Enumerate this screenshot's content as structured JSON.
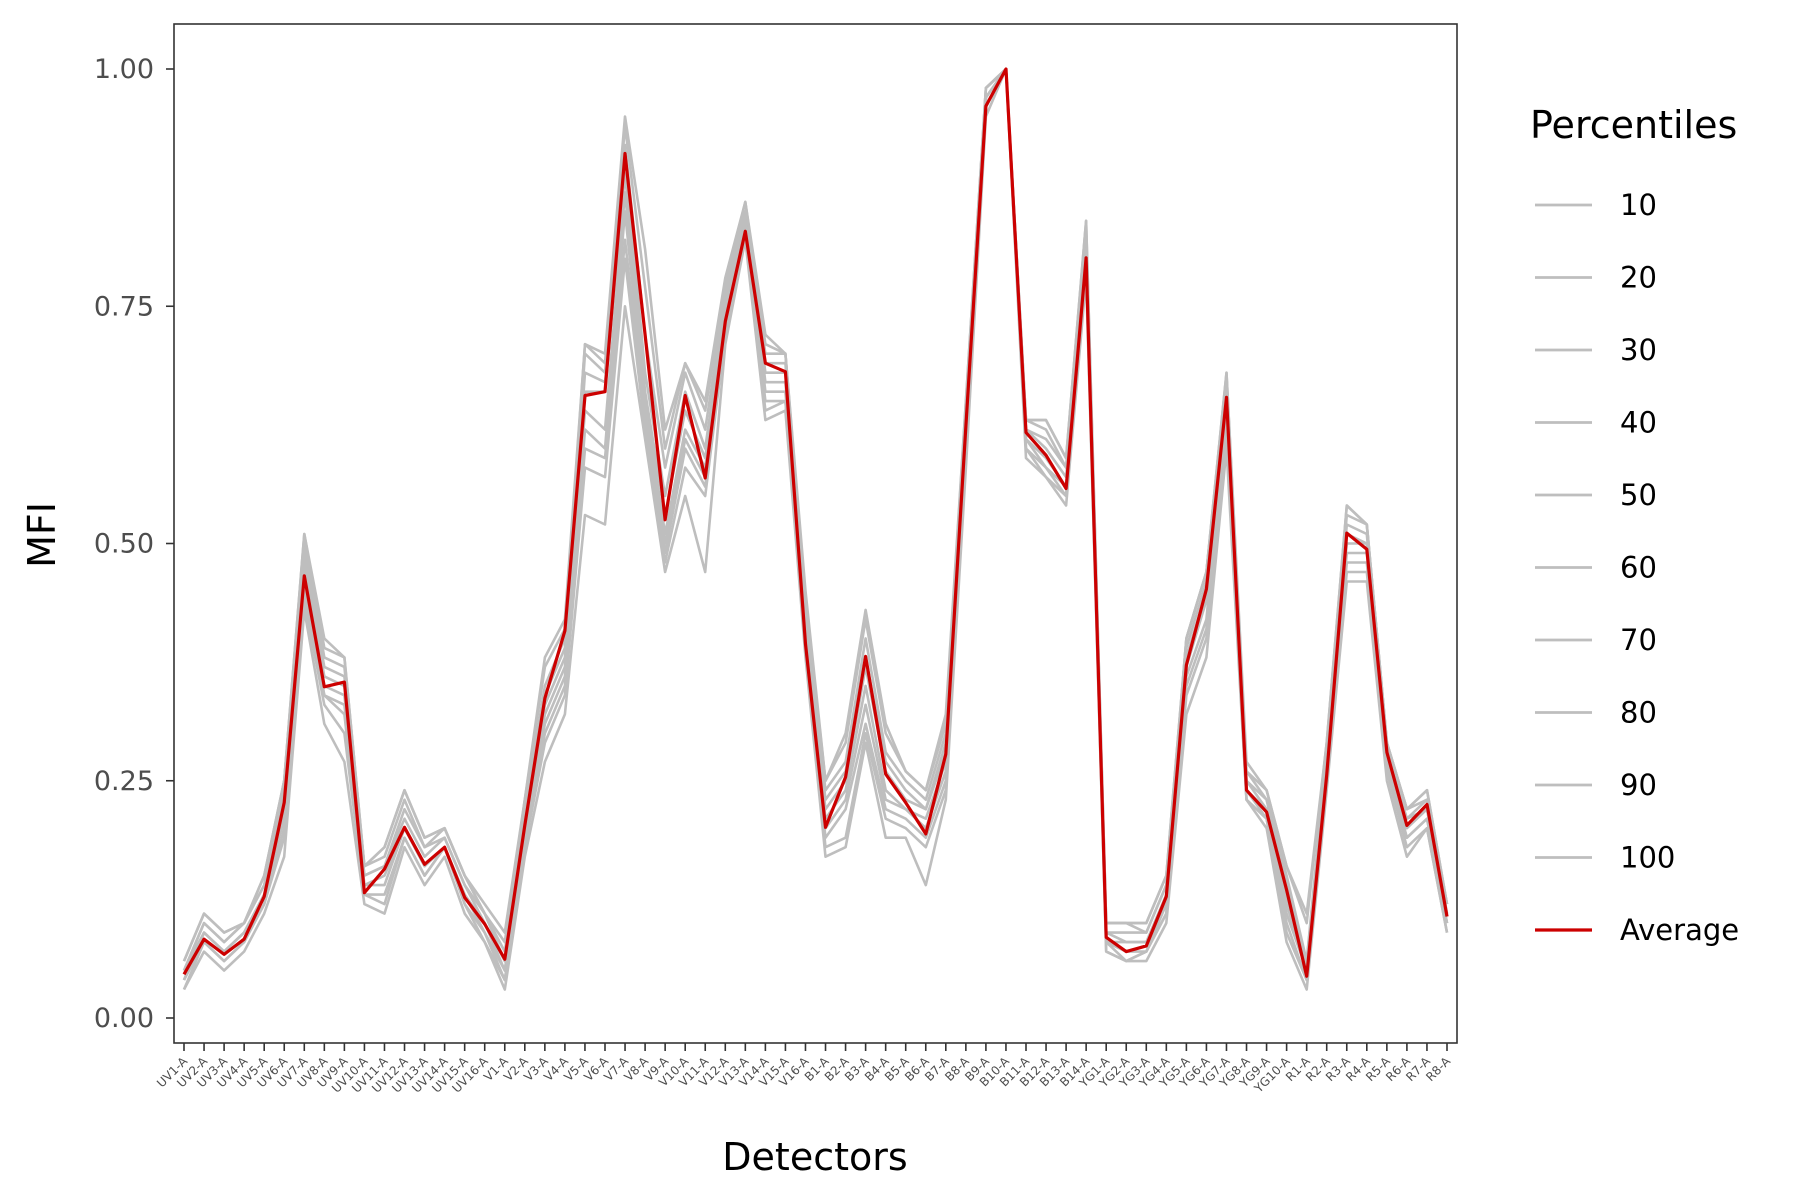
{
  "chart_data": {
    "type": "line",
    "xlabel": "Detectors",
    "ylabel": "MFI",
    "ylim": [
      0,
      1
    ],
    "yticks": [
      0.0,
      0.25,
      0.5,
      0.75,
      1.0
    ],
    "ytick_labels": [
      "0.00",
      "0.25",
      "0.50",
      "0.75",
      "1.00"
    ],
    "grid": false,
    "legend": {
      "title": "Percentiles",
      "position": "right"
    },
    "categories": [
      "UV1-A",
      "UV2-A",
      "UV3-A",
      "UV4-A",
      "UV5-A",
      "UV6-A",
      "UV7-A",
      "UV8-A",
      "UV9-A",
      "UV10-A",
      "UV11-A",
      "UV12-A",
      "UV13-A",
      "UV14-A",
      "UV15-A",
      "UV16-A",
      "V1-A",
      "V2-A",
      "V3-A",
      "V4-A",
      "V5-A",
      "V6-A",
      "V7-A",
      "V8-A",
      "V9-A",
      "V10-A",
      "V11-A",
      "V12-A",
      "V13-A",
      "V14-A",
      "V15-A",
      "V16-A",
      "B1-A",
      "B2-A",
      "B3-A",
      "B4-A",
      "B5-A",
      "B6-A",
      "B7-A",
      "B8-A",
      "B9-A",
      "B10-A",
      "B11-A",
      "B12-A",
      "B13-A",
      "B14-A",
      "YG1-A",
      "YG2-A",
      "YG3-A",
      "YG4-A",
      "YG5-A",
      "YG6-A",
      "YG7-A",
      "YG8-A",
      "YG9-A",
      "YG10-A",
      "R1-A",
      "R2-A",
      "R3-A",
      "R4-A",
      "R5-A",
      "R6-A",
      "R7-A",
      "R8-A"
    ],
    "series": [
      {
        "name": "10",
        "color": "#bebebe",
        "values": [
          0.03,
          0.07,
          0.05,
          0.07,
          0.11,
          0.17,
          0.43,
          0.31,
          0.27,
          0.12,
          0.11,
          0.18,
          0.14,
          0.17,
          0.11,
          0.08,
          0.03,
          0.17,
          0.27,
          0.32,
          0.53,
          0.52,
          0.75,
          0.61,
          0.47,
          0.55,
          0.47,
          0.71,
          0.82,
          0.63,
          0.64,
          0.38,
          0.17,
          0.18,
          0.29,
          0.19,
          0.19,
          0.14,
          0.23,
          0.58,
          0.95,
          1.0,
          0.59,
          0.57,
          0.54,
          0.78,
          0.07,
          0.06,
          0.06,
          0.1,
          0.32,
          0.38,
          0.6,
          0.23,
          0.2,
          0.08,
          0.03,
          0.24,
          0.46,
          0.46,
          0.25,
          0.17,
          0.2,
          0.09
        ]
      },
      {
        "name": "20",
        "color": "#bebebe",
        "values": [
          0.03,
          0.08,
          0.06,
          0.08,
          0.12,
          0.19,
          0.44,
          0.33,
          0.3,
          0.13,
          0.12,
          0.19,
          0.15,
          0.18,
          0.12,
          0.08,
          0.04,
          0.18,
          0.29,
          0.34,
          0.58,
          0.57,
          0.8,
          0.62,
          0.48,
          0.58,
          0.55,
          0.72,
          0.83,
          0.64,
          0.65,
          0.39,
          0.18,
          0.19,
          0.3,
          0.21,
          0.2,
          0.18,
          0.24,
          0.59,
          0.96,
          1.0,
          0.6,
          0.57,
          0.55,
          0.79,
          0.07,
          0.06,
          0.07,
          0.11,
          0.34,
          0.4,
          0.62,
          0.23,
          0.21,
          0.09,
          0.04,
          0.25,
          0.47,
          0.47,
          0.26,
          0.18,
          0.2,
          0.09
        ]
      },
      {
        "name": "30",
        "color": "#bebebe",
        "values": [
          0.04,
          0.08,
          0.06,
          0.08,
          0.12,
          0.2,
          0.45,
          0.34,
          0.32,
          0.13,
          0.13,
          0.19,
          0.15,
          0.18,
          0.12,
          0.09,
          0.04,
          0.19,
          0.3,
          0.35,
          0.6,
          0.59,
          0.82,
          0.63,
          0.49,
          0.6,
          0.56,
          0.72,
          0.83,
          0.65,
          0.65,
          0.39,
          0.19,
          0.22,
          0.31,
          0.22,
          0.21,
          0.19,
          0.25,
          0.6,
          0.96,
          1.0,
          0.6,
          0.58,
          0.55,
          0.79,
          0.08,
          0.06,
          0.07,
          0.11,
          0.35,
          0.41,
          0.63,
          0.23,
          0.21,
          0.1,
          0.04,
          0.25,
          0.48,
          0.48,
          0.26,
          0.19,
          0.21,
          0.1
        ]
      },
      {
        "name": "40",
        "color": "#bebebe",
        "values": [
          0.04,
          0.09,
          0.07,
          0.09,
          0.13,
          0.21,
          0.46,
          0.34,
          0.33,
          0.14,
          0.14,
          0.2,
          0.16,
          0.18,
          0.13,
          0.09,
          0.05,
          0.2,
          0.31,
          0.36,
          0.62,
          0.6,
          0.85,
          0.64,
          0.5,
          0.61,
          0.57,
          0.73,
          0.84,
          0.66,
          0.66,
          0.4,
          0.2,
          0.23,
          0.33,
          0.23,
          0.22,
          0.2,
          0.26,
          0.61,
          0.97,
          1.0,
          0.61,
          0.58,
          0.56,
          0.8,
          0.08,
          0.07,
          0.07,
          0.12,
          0.36,
          0.42,
          0.64,
          0.24,
          0.21,
          0.11,
          0.05,
          0.26,
          0.49,
          0.49,
          0.27,
          0.19,
          0.21,
          0.1
        ]
      },
      {
        "name": "50",
        "color": "#bebebe",
        "values": [
          0.04,
          0.09,
          0.07,
          0.09,
          0.13,
          0.22,
          0.47,
          0.35,
          0.34,
          0.14,
          0.15,
          0.2,
          0.16,
          0.18,
          0.13,
          0.1,
          0.05,
          0.2,
          0.32,
          0.37,
          0.64,
          0.62,
          0.87,
          0.65,
          0.51,
          0.62,
          0.58,
          0.73,
          0.84,
          0.67,
          0.67,
          0.41,
          0.21,
          0.24,
          0.35,
          0.24,
          0.22,
          0.21,
          0.27,
          0.62,
          0.97,
          1.0,
          0.61,
          0.59,
          0.56,
          0.8,
          0.08,
          0.08,
          0.08,
          0.12,
          0.37,
          0.44,
          0.65,
          0.24,
          0.22,
          0.12,
          0.05,
          0.26,
          0.5,
          0.5,
          0.27,
          0.2,
          0.22,
          0.1
        ]
      },
      {
        "name": "60",
        "color": "#bebebe",
        "values": [
          0.05,
          0.09,
          0.07,
          0.09,
          0.13,
          0.23,
          0.48,
          0.36,
          0.35,
          0.15,
          0.16,
          0.21,
          0.17,
          0.19,
          0.14,
          0.1,
          0.06,
          0.21,
          0.33,
          0.38,
          0.66,
          0.66,
          0.89,
          0.66,
          0.53,
          0.64,
          0.59,
          0.74,
          0.84,
          0.68,
          0.68,
          0.41,
          0.22,
          0.25,
          0.37,
          0.26,
          0.23,
          0.22,
          0.28,
          0.63,
          0.97,
          1.0,
          0.62,
          0.6,
          0.57,
          0.81,
          0.09,
          0.08,
          0.08,
          0.13,
          0.38,
          0.45,
          0.66,
          0.25,
          0.22,
          0.13,
          0.05,
          0.27,
          0.51,
          0.5,
          0.28,
          0.21,
          0.22,
          0.11
        ]
      },
      {
        "name": "70",
        "color": "#bebebe",
        "values": [
          0.05,
          0.1,
          0.08,
          0.1,
          0.14,
          0.24,
          0.49,
          0.37,
          0.36,
          0.15,
          0.16,
          0.22,
          0.18,
          0.19,
          0.14,
          0.11,
          0.06,
          0.22,
          0.34,
          0.39,
          0.68,
          0.67,
          0.91,
          0.68,
          0.55,
          0.66,
          0.6,
          0.75,
          0.85,
          0.69,
          0.69,
          0.42,
          0.23,
          0.26,
          0.38,
          0.27,
          0.24,
          0.22,
          0.29,
          0.63,
          0.97,
          1.0,
          0.62,
          0.61,
          0.58,
          0.82,
          0.09,
          0.09,
          0.09,
          0.14,
          0.39,
          0.46,
          0.67,
          0.25,
          0.23,
          0.14,
          0.06,
          0.27,
          0.52,
          0.51,
          0.28,
          0.21,
          0.23,
          0.11
        ]
      },
      {
        "name": "80",
        "color": "#bebebe",
        "values": [
          0.05,
          0.1,
          0.08,
          0.1,
          0.14,
          0.25,
          0.5,
          0.38,
          0.37,
          0.16,
          0.17,
          0.23,
          0.18,
          0.2,
          0.15,
          0.11,
          0.07,
          0.22,
          0.35,
          0.4,
          0.7,
          0.68,
          0.92,
          0.72,
          0.58,
          0.68,
          0.62,
          0.76,
          0.85,
          0.7,
          0.7,
          0.43,
          0.24,
          0.27,
          0.4,
          0.28,
          0.25,
          0.23,
          0.3,
          0.64,
          0.98,
          1.0,
          0.63,
          0.62,
          0.58,
          0.83,
          0.1,
          0.1,
          0.09,
          0.14,
          0.4,
          0.47,
          0.67,
          0.26,
          0.23,
          0.15,
          0.06,
          0.28,
          0.53,
          0.52,
          0.29,
          0.22,
          0.23,
          0.12
        ]
      },
      {
        "name": "90",
        "color": "#bebebe",
        "values": [
          0.06,
          0.11,
          0.09,
          0.1,
          0.15,
          0.25,
          0.51,
          0.39,
          0.38,
          0.16,
          0.18,
          0.24,
          0.19,
          0.2,
          0.15,
          0.11,
          0.08,
          0.23,
          0.37,
          0.41,
          0.71,
          0.69,
          0.94,
          0.77,
          0.6,
          0.69,
          0.64,
          0.77,
          0.86,
          0.71,
          0.7,
          0.44,
          0.25,
          0.29,
          0.42,
          0.3,
          0.26,
          0.24,
          0.31,
          0.65,
          0.98,
          1.0,
          0.63,
          0.63,
          0.59,
          0.84,
          0.1,
          0.1,
          0.1,
          0.15,
          0.4,
          0.47,
          0.68,
          0.26,
          0.24,
          0.16,
          0.1,
          0.29,
          0.54,
          0.52,
          0.29,
          0.22,
          0.24,
          0.12
        ]
      },
      {
        "name": "100",
        "color": "#bebebe",
        "values": [
          0.06,
          0.11,
          0.09,
          0.1,
          0.15,
          0.25,
          0.51,
          0.4,
          0.38,
          0.16,
          0.18,
          0.24,
          0.19,
          0.2,
          0.15,
          0.12,
          0.09,
          0.23,
          0.38,
          0.42,
          0.71,
          0.7,
          0.95,
          0.81,
          0.62,
          0.69,
          0.65,
          0.78,
          0.86,
          0.72,
          0.7,
          0.45,
          0.25,
          0.3,
          0.43,
          0.31,
          0.26,
          0.24,
          0.32,
          0.65,
          0.98,
          1.0,
          0.63,
          0.63,
          0.59,
          0.84,
          0.1,
          0.1,
          0.1,
          0.15,
          0.4,
          0.47,
          0.68,
          0.27,
          0.24,
          0.16,
          0.11,
          0.29,
          0.54,
          0.52,
          0.29,
          0.22,
          0.24,
          0.12
        ]
      },
      {
        "name": "Average",
        "color": "#cc0000",
        "values": [
          0.046,
          0.083,
          0.067,
          0.083,
          0.128,
          0.227,
          0.466,
          0.349,
          0.354,
          0.132,
          0.157,
          0.201,
          0.162,
          0.18,
          0.127,
          0.099,
          0.062,
          0.203,
          0.337,
          0.408,
          0.656,
          0.66,
          0.911,
          0.72,
          0.525,
          0.656,
          0.569,
          0.734,
          0.829,
          0.69,
          0.681,
          0.394,
          0.201,
          0.254,
          0.381,
          0.257,
          0.227,
          0.194,
          0.278,
          0.624,
          0.961,
          1.0,
          0.617,
          0.593,
          0.558,
          0.801,
          0.085,
          0.07,
          0.076,
          0.128,
          0.372,
          0.452,
          0.654,
          0.24,
          0.217,
          0.135,
          0.044,
          0.256,
          0.511,
          0.494,
          0.28,
          0.203,
          0.225,
          0.107
        ]
      }
    ]
  }
}
